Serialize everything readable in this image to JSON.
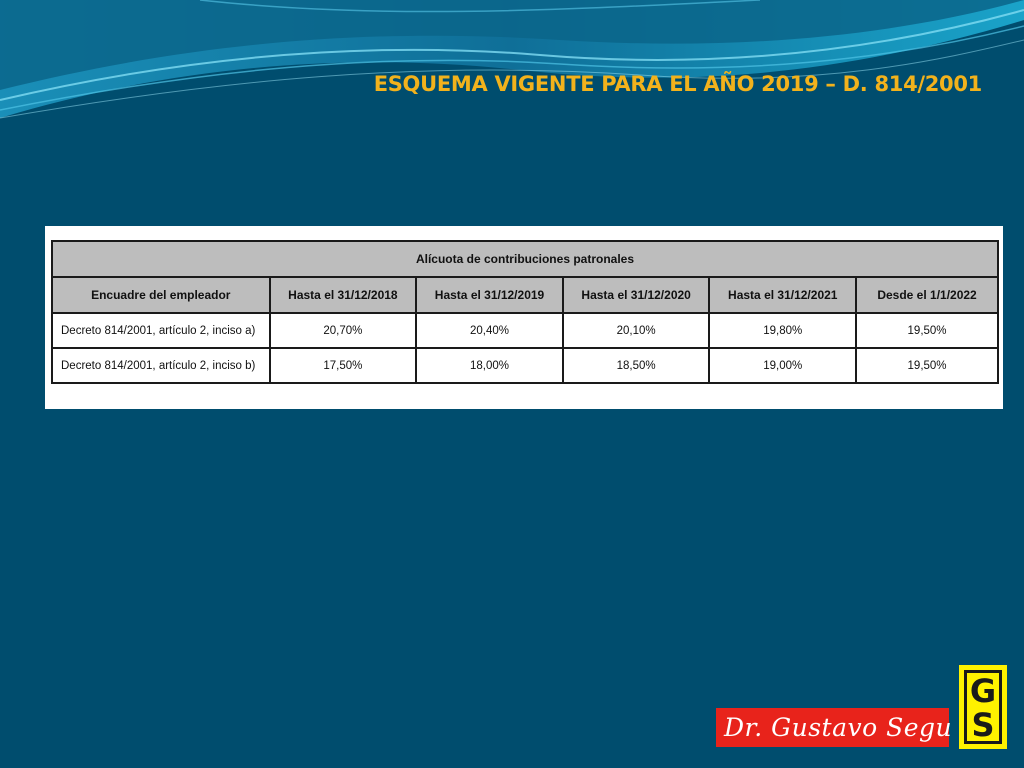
{
  "slide": {
    "title": "ESQUEMA VIGENTE PARA EL AÑO 2019 – D. 814/2001"
  },
  "table": {
    "caption": "Alícuota de contribuciones patronales",
    "headers": [
      "Encuadre del empleador",
      "Hasta el 31/12/2018",
      "Hasta el 31/12/2019",
      "Hasta el 31/12/2020",
      "Hasta el 31/12/2021",
      "Desde el 1/1/2022"
    ],
    "rows": [
      [
        "Decreto 814/2001, artículo 2, inciso a)",
        "20,70%",
        "20,40%",
        "20,10%",
        "19,80%",
        "19,50%"
      ],
      [
        "Decreto 814/2001, artículo 2, inciso b)",
        "17,50%",
        "18,00%",
        "18,50%",
        "19,00%",
        "19,50%"
      ]
    ]
  },
  "footer": {
    "signature": "Dr. Gustavo Segu",
    "logo_top": "G",
    "logo_bottom": "S"
  },
  "colors": {
    "background": "#004d6e",
    "title": "#f2b21c",
    "signature_bg": "#e8231b",
    "logo_bg": "#fff200"
  }
}
